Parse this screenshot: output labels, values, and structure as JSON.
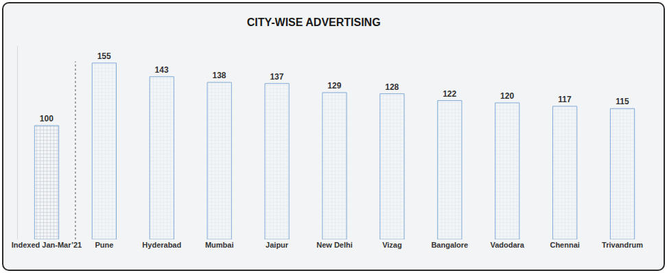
{
  "chart_data": {
    "type": "bar",
    "title": "CITY-WISE ADVERTISING",
    "categories": [
      "Indexed Jan-Mar’21",
      "Pune",
      "Hyderabad",
      "Mumbai",
      "Jaipur",
      "New Delhi",
      "Vizag",
      "Bangalore",
      "Vadodara",
      "Chennai",
      "Trivandrum"
    ],
    "values": [
      100,
      155,
      143,
      138,
      137,
      129,
      128,
      122,
      120,
      117,
      115
    ],
    "colors": [
      "#1f3a6e",
      "#9cc3ea",
      "#9cc3ea",
      "#9cc3ea",
      "#9cc3ea",
      "#9cc3ea",
      "#9cc3ea",
      "#9cc3ea",
      "#9cc3ea",
      "#9cc3ea",
      "#9cc3ea"
    ],
    "ylim": [
      0,
      170
    ],
    "data_labels": true,
    "tick_labels": "x",
    "grid": false
  }
}
